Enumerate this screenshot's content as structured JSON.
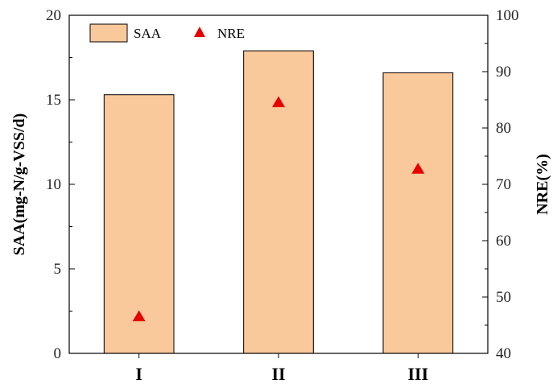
{
  "chart_data": {
    "type": "bar",
    "categories": [
      "I",
      "II",
      "III"
    ],
    "series": [
      {
        "name": "SAA",
        "type": "bar",
        "axis": "left",
        "values": [
          15.3,
          17.9,
          16.6
        ]
      },
      {
        "name": "NRE",
        "type": "scatter",
        "marker": "triangle",
        "axis": "right",
        "values": [
          46.5,
          84.5,
          72.7
        ]
      }
    ],
    "ylabel": "SAA(mg-N/g-VSS/d)",
    "ylim": [
      0,
      20
    ],
    "yticks": [
      "0",
      "5",
      "10",
      "15",
      "20"
    ],
    "y2label": "NRE(%)",
    "y2lim": [
      40,
      100
    ],
    "y2ticks": [
      "40",
      "50",
      "60",
      "70",
      "80",
      "90",
      "100"
    ],
    "legend": {
      "placement": "top-left",
      "entries": [
        "SAA",
        "NRE"
      ]
    },
    "grid": false,
    "colors": {
      "bar_fill": "#f9c89b",
      "bar_stroke": "#000000",
      "marker": "#e60000",
      "axis": "#000000"
    }
  }
}
